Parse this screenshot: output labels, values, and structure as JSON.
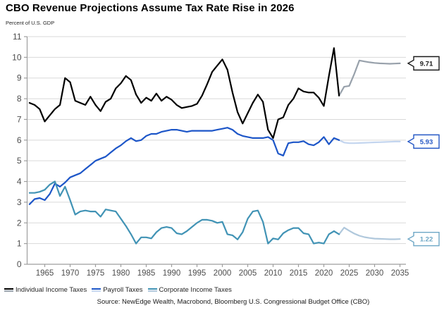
{
  "header": {
    "title": "CBO Revenue Projections Assume Tax Rate Rise in 2026",
    "unit_label": "Percent of U.S. GDP"
  },
  "footer": {
    "source": "Source: NewEdge Wealth, Macrobond, Bloomberg U.S. Congressional Budget Office (CBO)"
  },
  "legend": {
    "items": [
      {
        "label": "Individual Income Taxes",
        "colors": [
          "#000000",
          "#98a1ab"
        ]
      },
      {
        "label": "Payroll Taxes",
        "colors": [
          "#1d56c8",
          "#c3d5ef"
        ]
      },
      {
        "label": "Corporate Income Taxes",
        "colors": [
          "#4193b5",
          "#b0c8dc"
        ]
      }
    ]
  },
  "chart_data": {
    "type": "line",
    "title": "CBO Revenue Projections Assume Tax Rate Rise in 2026",
    "ylabel": "Percent of U.S. GDP",
    "xlabel": "",
    "grid": "horizontal",
    "legend_position": "bottom",
    "ylim": [
      0,
      11
    ],
    "xlim": [
      1961,
      2036
    ],
    "y_ticks": [
      0,
      1,
      2,
      3,
      4,
      5,
      6,
      7,
      8,
      9,
      10,
      11
    ],
    "x_ticks": [
      1965,
      1970,
      1975,
      1980,
      1985,
      1990,
      1995,
      2000,
      2005,
      2010,
      2015,
      2020,
      2025,
      2030,
      2035
    ],
    "series": [
      {
        "name": "Individual Income Taxes",
        "segment": "history",
        "color": "#000000",
        "start_year": 1962,
        "values": [
          7.8,
          7.7,
          7.5,
          6.9,
          7.2,
          7.5,
          7.7,
          9.0,
          8.8,
          7.9,
          7.8,
          7.7,
          8.1,
          7.7,
          7.4,
          7.85,
          8.0,
          8.5,
          8.75,
          9.1,
          8.9,
          8.2,
          7.8,
          8.05,
          7.9,
          8.25,
          7.9,
          8.1,
          7.95,
          7.7,
          7.55,
          7.6,
          7.65,
          7.75,
          8.15,
          8.7,
          9.3,
          9.6,
          9.9,
          9.4,
          8.3,
          7.35,
          6.8,
          7.3,
          7.8,
          8.2,
          7.85,
          6.5,
          6.1,
          7.0,
          7.1,
          7.7,
          8.0,
          8.5,
          8.35,
          8.3,
          8.3,
          8.05,
          7.65,
          9.1,
          10.45,
          8.15
        ]
      },
      {
        "name": "Individual Income Taxes",
        "segment": "projection",
        "color": "#98a1ab",
        "start_year": 2023,
        "values": [
          8.15,
          8.58,
          8.62,
          9.2,
          9.85,
          9.8,
          9.76,
          9.73,
          9.71,
          9.7,
          9.69,
          9.7,
          9.71
        ]
      },
      {
        "name": "Payroll Taxes",
        "segment": "history",
        "color": "#1d56c8",
        "start_year": 1962,
        "values": [
          2.9,
          3.15,
          3.2,
          3.1,
          3.4,
          3.9,
          3.75,
          3.95,
          4.2,
          4.3,
          4.4,
          4.6,
          4.8,
          5.0,
          5.1,
          5.2,
          5.4,
          5.6,
          5.75,
          5.95,
          6.1,
          5.95,
          6.0,
          6.2,
          6.3,
          6.3,
          6.4,
          6.45,
          6.5,
          6.5,
          6.45,
          6.4,
          6.45,
          6.45,
          6.45,
          6.45,
          6.45,
          6.5,
          6.55,
          6.6,
          6.5,
          6.3,
          6.2,
          6.15,
          6.1,
          6.1,
          6.1,
          6.15,
          6.0,
          5.35,
          5.25,
          5.85,
          5.9,
          5.9,
          5.95,
          5.8,
          5.75,
          5.9,
          6.15,
          5.8,
          6.1,
          6.0
        ]
      },
      {
        "name": "Payroll Taxes",
        "segment": "projection",
        "color": "#c3d5ef",
        "start_year": 2023,
        "values": [
          6.0,
          5.88,
          5.85,
          5.85,
          5.86,
          5.87,
          5.88,
          5.89,
          5.9,
          5.91,
          5.92,
          5.93,
          5.93
        ]
      },
      {
        "name": "Corporate Income Taxes",
        "segment": "history",
        "color": "#4193b5",
        "start_year": 1962,
        "values": [
          3.45,
          3.45,
          3.5,
          3.6,
          3.85,
          4.0,
          3.3,
          3.75,
          3.1,
          2.4,
          2.55,
          2.6,
          2.55,
          2.55,
          2.3,
          2.65,
          2.6,
          2.55,
          2.2,
          1.85,
          1.45,
          1.0,
          1.3,
          1.3,
          1.25,
          1.55,
          1.75,
          1.8,
          1.75,
          1.5,
          1.45,
          1.6,
          1.8,
          2.0,
          2.15,
          2.15,
          2.1,
          2.0,
          2.05,
          1.45,
          1.4,
          1.2,
          1.55,
          2.2,
          2.55,
          2.6,
          2.05,
          1.0,
          1.25,
          1.2,
          1.5,
          1.65,
          1.75,
          1.75,
          1.5,
          1.45,
          1.0,
          1.05,
          1.0,
          1.45,
          1.6,
          1.45
        ]
      },
      {
        "name": "Corporate Income Taxes",
        "segment": "projection",
        "color": "#b0c8dc",
        "start_year": 2023,
        "values": [
          1.45,
          1.77,
          1.62,
          1.48,
          1.38,
          1.31,
          1.27,
          1.24,
          1.23,
          1.22,
          1.21,
          1.21,
          1.22
        ]
      }
    ],
    "end_labels": [
      {
        "text": "9.71",
        "value": 9.71,
        "color": "#1a1a1a"
      },
      {
        "text": "5.93",
        "value": 5.93,
        "color": "#2457c5"
      },
      {
        "text": "1.22",
        "value": 1.22,
        "color": "#6ea7c6"
      }
    ],
    "axis_color": "#9e9e9e",
    "grid_color": "#d9d9d9",
    "tick_label_color": "#4d4d4d"
  }
}
